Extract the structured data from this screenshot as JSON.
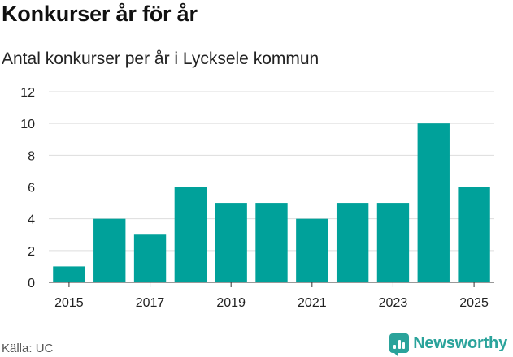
{
  "header": {
    "title": "Konkurser år för år",
    "subtitle": "Antal konkurser per år i Lycksele kommun"
  },
  "footer": {
    "source": "Källa: UC",
    "brand": "Newsworthy",
    "brand_icon": "newsworthy-logo-icon"
  },
  "colors": {
    "bar": "#00a19a",
    "grid": "#dddddd",
    "axis": "#333333",
    "brand": "#2aa39b"
  },
  "chart_data": {
    "type": "bar",
    "x": [
      2015,
      2016,
      2017,
      2018,
      2019,
      2020,
      2021,
      2022,
      2023,
      2024,
      2025
    ],
    "values": [
      1,
      4,
      3,
      6,
      5,
      5,
      4,
      5,
      5,
      10,
      6
    ],
    "xticks": [
      "2015",
      "2017",
      "2019",
      "2021",
      "2023",
      "2025"
    ],
    "yticks": [
      "0",
      "2",
      "4",
      "6",
      "8",
      "10",
      "12"
    ],
    "ylim": [
      0,
      12
    ],
    "grid": true,
    "legend": "none"
  }
}
